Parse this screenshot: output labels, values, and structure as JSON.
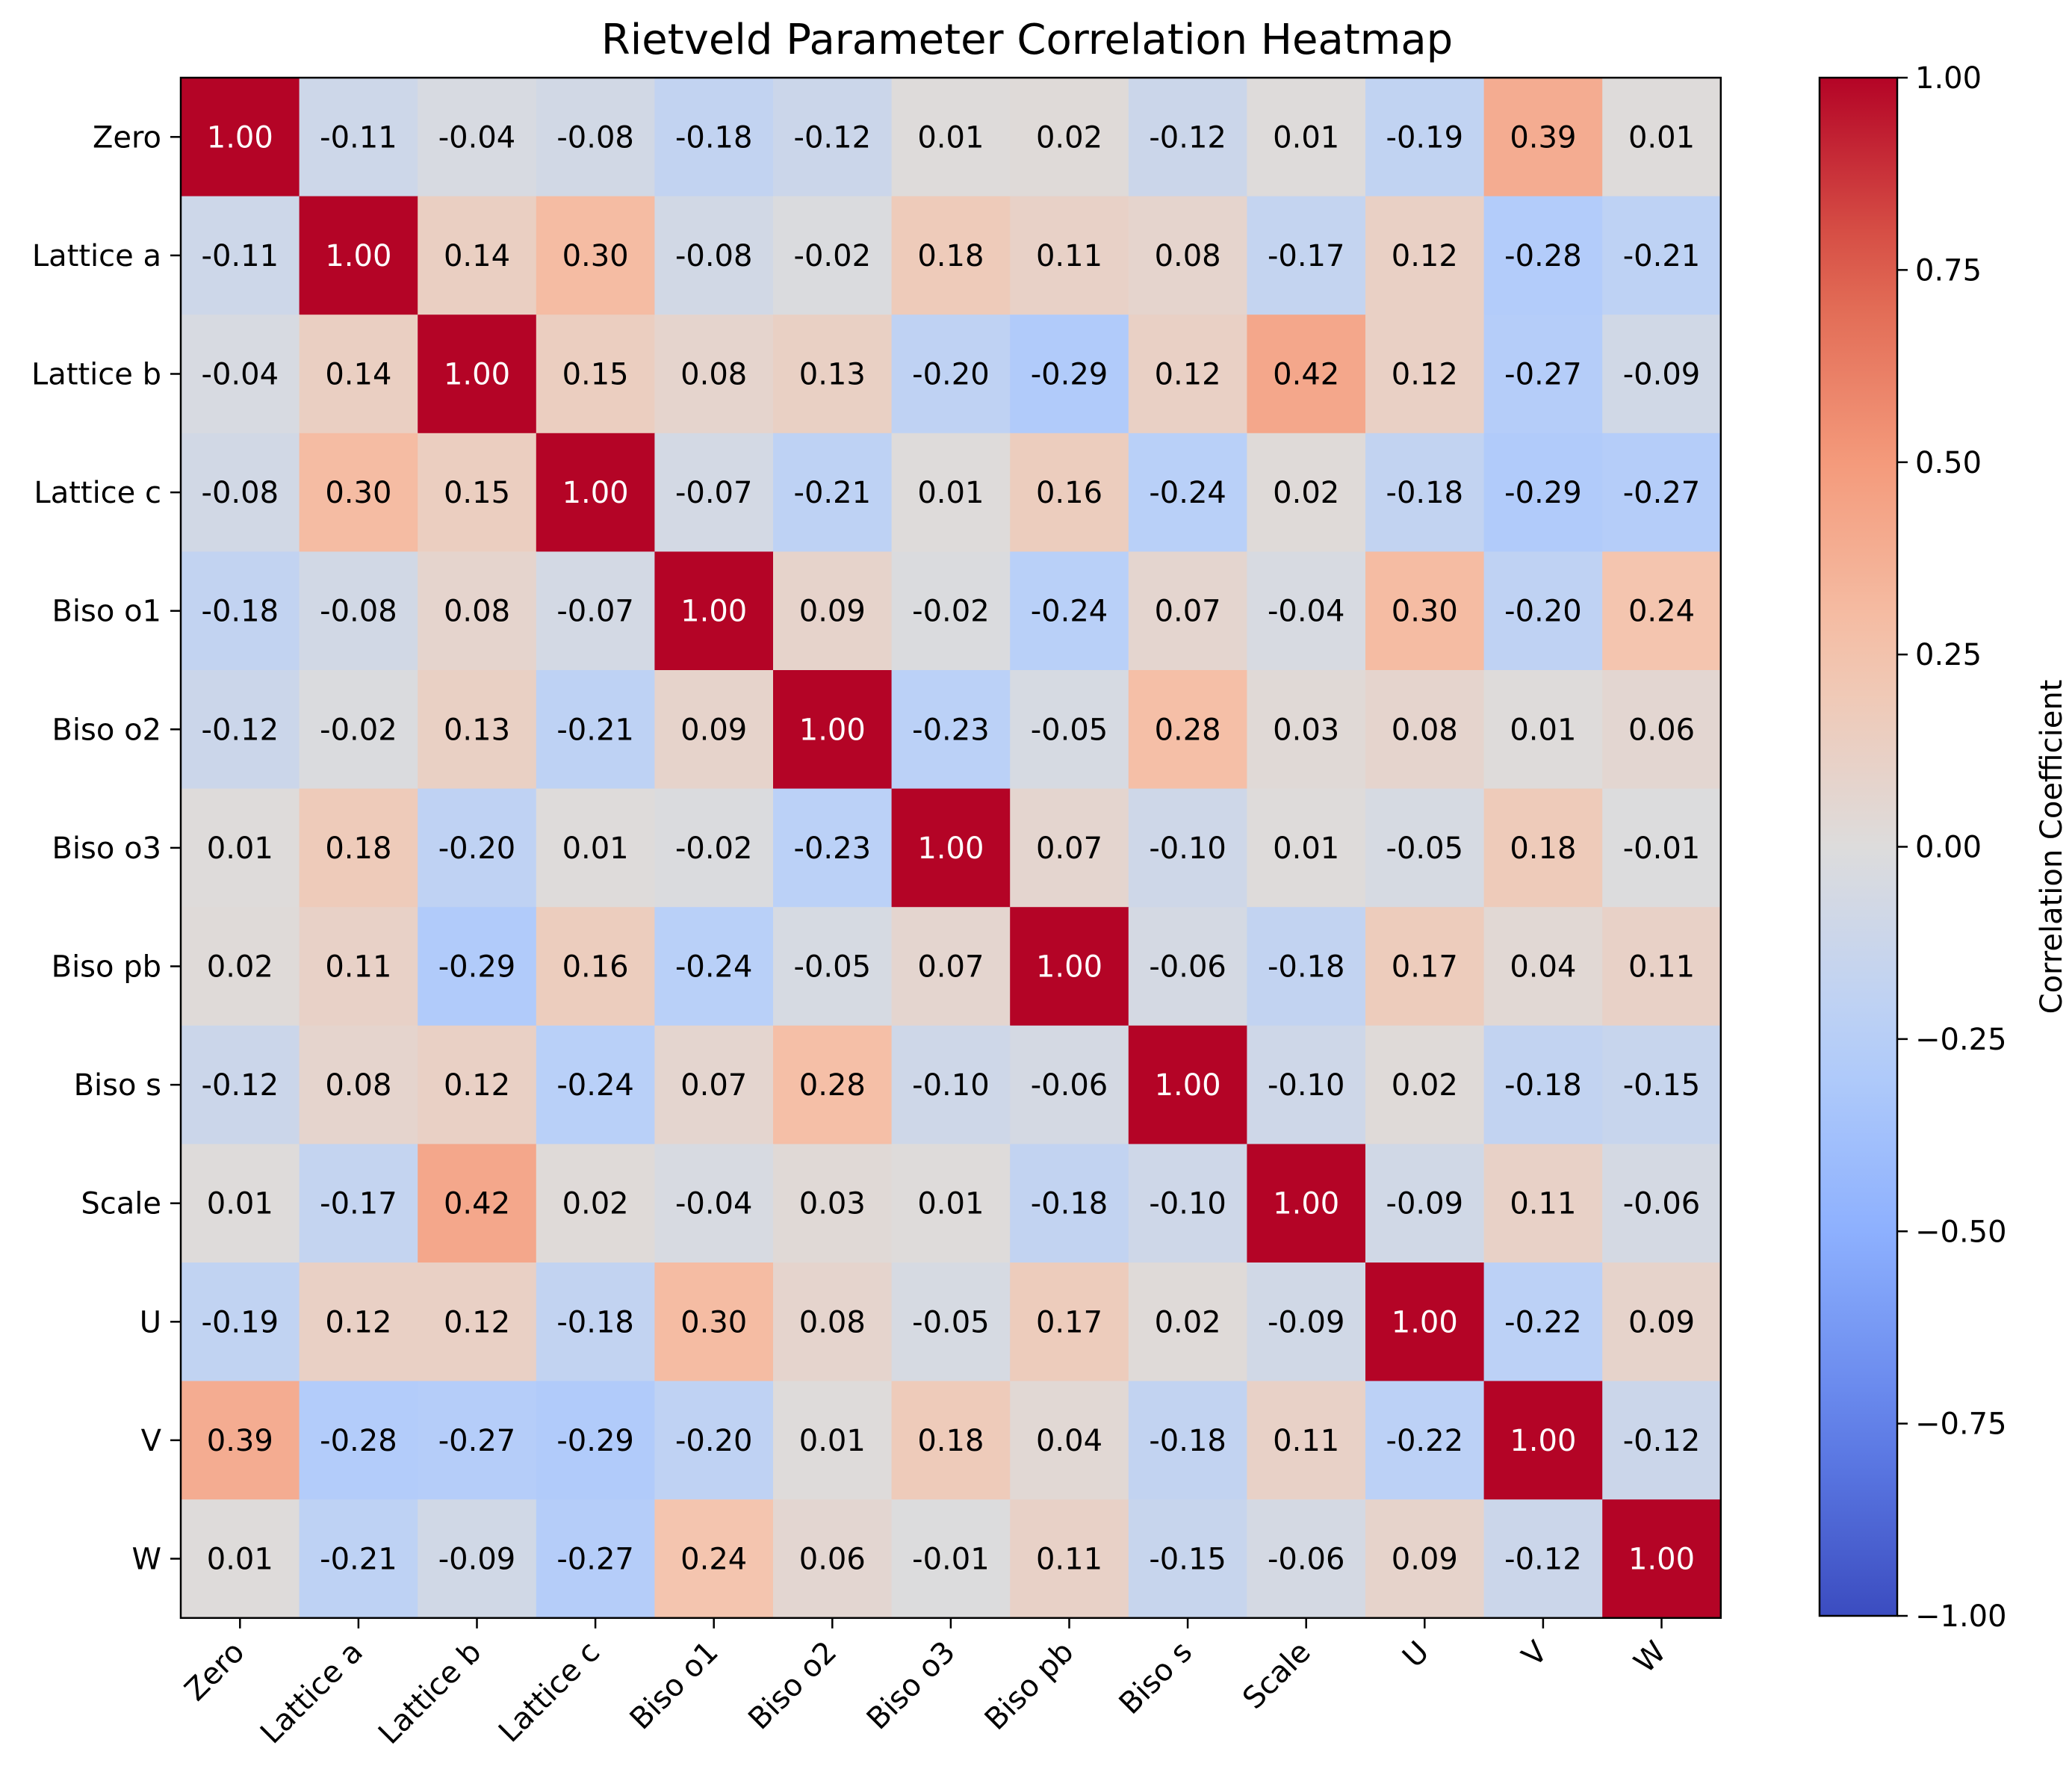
{
  "chart_data": {
    "type": "heatmap",
    "title": "Rietveld Parameter Correlation Heatmap",
    "xlabel": "",
    "ylabel": "",
    "row_labels": [
      "Zero",
      "Lattice a",
      "Lattice b",
      "Lattice c",
      "Biso o1",
      "Biso o2",
      "Biso o3",
      "Biso pb",
      "Biso s",
      "Scale",
      "U",
      "V",
      "W"
    ],
    "col_labels": [
      "Zero",
      "Lattice a",
      "Lattice b",
      "Lattice c",
      "Biso o1",
      "Biso o2",
      "Biso o3",
      "Biso pb",
      "Biso s",
      "Scale",
      "U",
      "V",
      "W"
    ],
    "values": [
      [
        1.0,
        -0.11,
        -0.04,
        -0.08,
        -0.18,
        -0.12,
        0.01,
        0.02,
        -0.12,
        0.01,
        -0.19,
        0.39,
        0.01
      ],
      [
        -0.11,
        1.0,
        0.14,
        0.3,
        -0.08,
        -0.02,
        0.18,
        0.11,
        0.08,
        -0.17,
        0.12,
        -0.28,
        -0.21
      ],
      [
        -0.04,
        0.14,
        1.0,
        0.15,
        0.08,
        0.13,
        -0.2,
        -0.29,
        0.12,
        0.42,
        0.12,
        -0.27,
        -0.09
      ],
      [
        -0.08,
        0.3,
        0.15,
        1.0,
        -0.07,
        -0.21,
        0.01,
        0.16,
        -0.24,
        0.02,
        -0.18,
        -0.29,
        -0.27
      ],
      [
        -0.18,
        -0.08,
        0.08,
        -0.07,
        1.0,
        0.09,
        -0.02,
        -0.24,
        0.07,
        -0.04,
        0.3,
        -0.2,
        0.24
      ],
      [
        -0.12,
        -0.02,
        0.13,
        -0.21,
        0.09,
        1.0,
        -0.23,
        -0.05,
        0.28,
        0.03,
        0.08,
        0.01,
        0.06
      ],
      [
        0.01,
        0.18,
        -0.2,
        0.01,
        -0.02,
        -0.23,
        1.0,
        0.07,
        -0.1,
        0.01,
        -0.05,
        0.18,
        -0.01
      ],
      [
        0.02,
        0.11,
        -0.29,
        0.16,
        -0.24,
        -0.05,
        0.07,
        1.0,
        -0.06,
        -0.18,
        0.17,
        0.04,
        0.11
      ],
      [
        -0.12,
        0.08,
        0.12,
        -0.24,
        0.07,
        0.28,
        -0.1,
        -0.06,
        1.0,
        -0.1,
        0.02,
        -0.18,
        -0.15
      ],
      [
        0.01,
        -0.17,
        0.42,
        0.02,
        -0.04,
        0.03,
        0.01,
        -0.18,
        -0.1,
        1.0,
        -0.09,
        0.11,
        -0.06
      ],
      [
        -0.19,
        0.12,
        0.12,
        -0.18,
        0.3,
        0.08,
        -0.05,
        0.17,
        0.02,
        -0.09,
        1.0,
        -0.22,
        0.09
      ],
      [
        0.39,
        -0.28,
        -0.27,
        -0.29,
        -0.2,
        0.01,
        0.18,
        0.04,
        -0.18,
        0.11,
        -0.22,
        1.0,
        -0.12
      ],
      [
        0.01,
        -0.21,
        -0.09,
        -0.27,
        0.24,
        0.06,
        -0.01,
        0.11,
        -0.15,
        -0.06,
        0.09,
        -0.12,
        1.0
      ]
    ],
    "colormap": "coolwarm",
    "vmin": -1.0,
    "vmax": 1.0,
    "colorbar": {
      "label": "Correlation Coefficient",
      "ticks": [
        1.0,
        0.75,
        0.5,
        0.25,
        0.0,
        -0.25,
        -0.5,
        -0.75,
        -1.0
      ],
      "tick_labels": [
        "1.00",
        "0.75",
        "0.50",
        "0.25",
        "0.00",
        "−0.25",
        "−0.50",
        "−0.75",
        "−1.00"
      ]
    },
    "grid": false,
    "legend": "none"
  }
}
